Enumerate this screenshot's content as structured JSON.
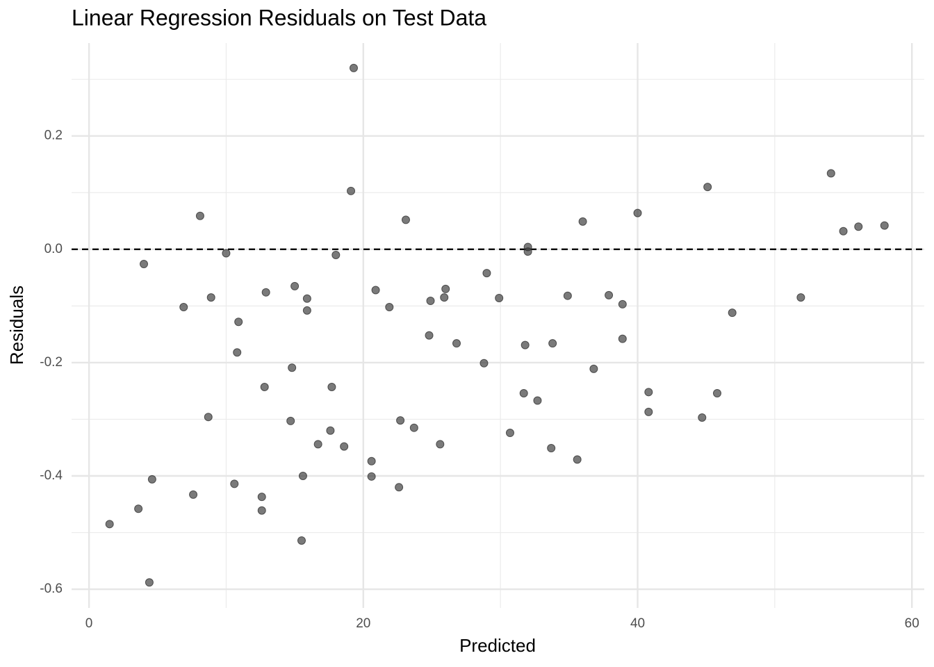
{
  "chart_data": {
    "type": "scatter",
    "title": "Linear Regression Residuals on Test Data",
    "x_label": "Predicted",
    "y_label": "Residuals",
    "x": [
      1.5,
      3.6,
      4.0,
      4.4,
      4.6,
      6.9,
      7.6,
      8.1,
      8.7,
      8.9,
      10.0,
      10.6,
      10.8,
      10.9,
      12.6,
      12.6,
      12.8,
      12.9,
      14.7,
      14.8,
      15.0,
      15.5,
      15.6,
      15.9,
      15.9,
      16.7,
      17.6,
      17.7,
      18.0,
      18.6,
      19.1,
      19.3,
      20.6,
      20.6,
      20.9,
      21.9,
      22.6,
      22.7,
      23.1,
      23.7,
      24.8,
      24.9,
      25.6,
      25.9,
      26.0,
      26.8,
      28.8,
      29.0,
      29.9,
      30.7,
      31.7,
      31.8,
      32.0,
      32.0,
      32.7,
      33.7,
      33.8,
      34.9,
      35.6,
      36.0,
      36.8,
      37.9,
      38.9,
      38.9,
      40.0,
      40.8,
      40.8,
      44.7,
      45.1,
      45.8,
      46.9,
      51.9,
      54.1,
      55.0,
      56.1,
      58.0
    ],
    "values": [
      -0.485,
      -0.458,
      -0.026,
      -0.588,
      -0.406,
      -0.102,
      -0.433,
      0.059,
      -0.296,
      -0.085,
      -0.007,
      -0.414,
      -0.182,
      -0.128,
      -0.437,
      -0.461,
      -0.243,
      -0.076,
      -0.303,
      -0.209,
      -0.065,
      -0.514,
      -0.4,
      -0.108,
      -0.087,
      -0.344,
      -0.32,
      -0.243,
      -0.01,
      -0.348,
      0.103,
      0.32,
      -0.374,
      -0.401,
      -0.072,
      -0.102,
      -0.42,
      -0.302,
      0.052,
      -0.315,
      -0.152,
      -0.091,
      -0.344,
      -0.085,
      -0.07,
      -0.166,
      -0.201,
      -0.042,
      -0.086,
      -0.324,
      -0.254,
      -0.169,
      0.004,
      -0.004,
      -0.267,
      -0.351,
      -0.166,
      -0.082,
      -0.371,
      0.049,
      -0.211,
      -0.081,
      -0.158,
      -0.097,
      0.064,
      -0.252,
      -0.287,
      -0.297,
      0.11,
      -0.254,
      -0.112,
      -0.085,
      0.134,
      0.032,
      0.04,
      0.042
    ],
    "color": "#333333",
    "xlim": [
      -1.27,
      60.9
    ],
    "ylim": [
      -0.633,
      0.364
    ],
    "xticks": [
      0,
      20,
      40,
      60
    ],
    "yticks": [
      -0.6,
      -0.4,
      -0.2,
      {
        "value": 0,
        "label": "0.0"
      },
      0.2
    ],
    "x_minor_grid": [
      10,
      30,
      50
    ],
    "y_minor_grid": [
      -0.5,
      -0.3,
      -0.1,
      0.1,
      0.3
    ],
    "hline": 0,
    "grid": true
  }
}
